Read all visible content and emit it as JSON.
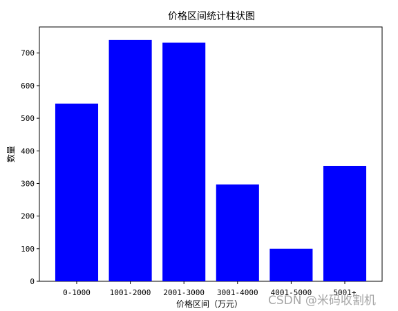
{
  "chart_data": {
    "type": "bar",
    "title": "价格区间统计柱状图",
    "xlabel": "价格区间（万元）",
    "ylabel": "数量",
    "categories": [
      "0-1000",
      "1001-2000",
      "2001-3000",
      "3001-4000",
      "4001-5000",
      "5001+"
    ],
    "values": [
      545,
      740,
      732,
      297,
      100,
      354
    ],
    "ylim": [
      0,
      780
    ],
    "yticks": [
      0,
      100,
      200,
      300,
      400,
      500,
      600,
      700
    ],
    "bar_color": "#0000ff",
    "grid": false
  },
  "watermark": "CSDN @米码收割机"
}
